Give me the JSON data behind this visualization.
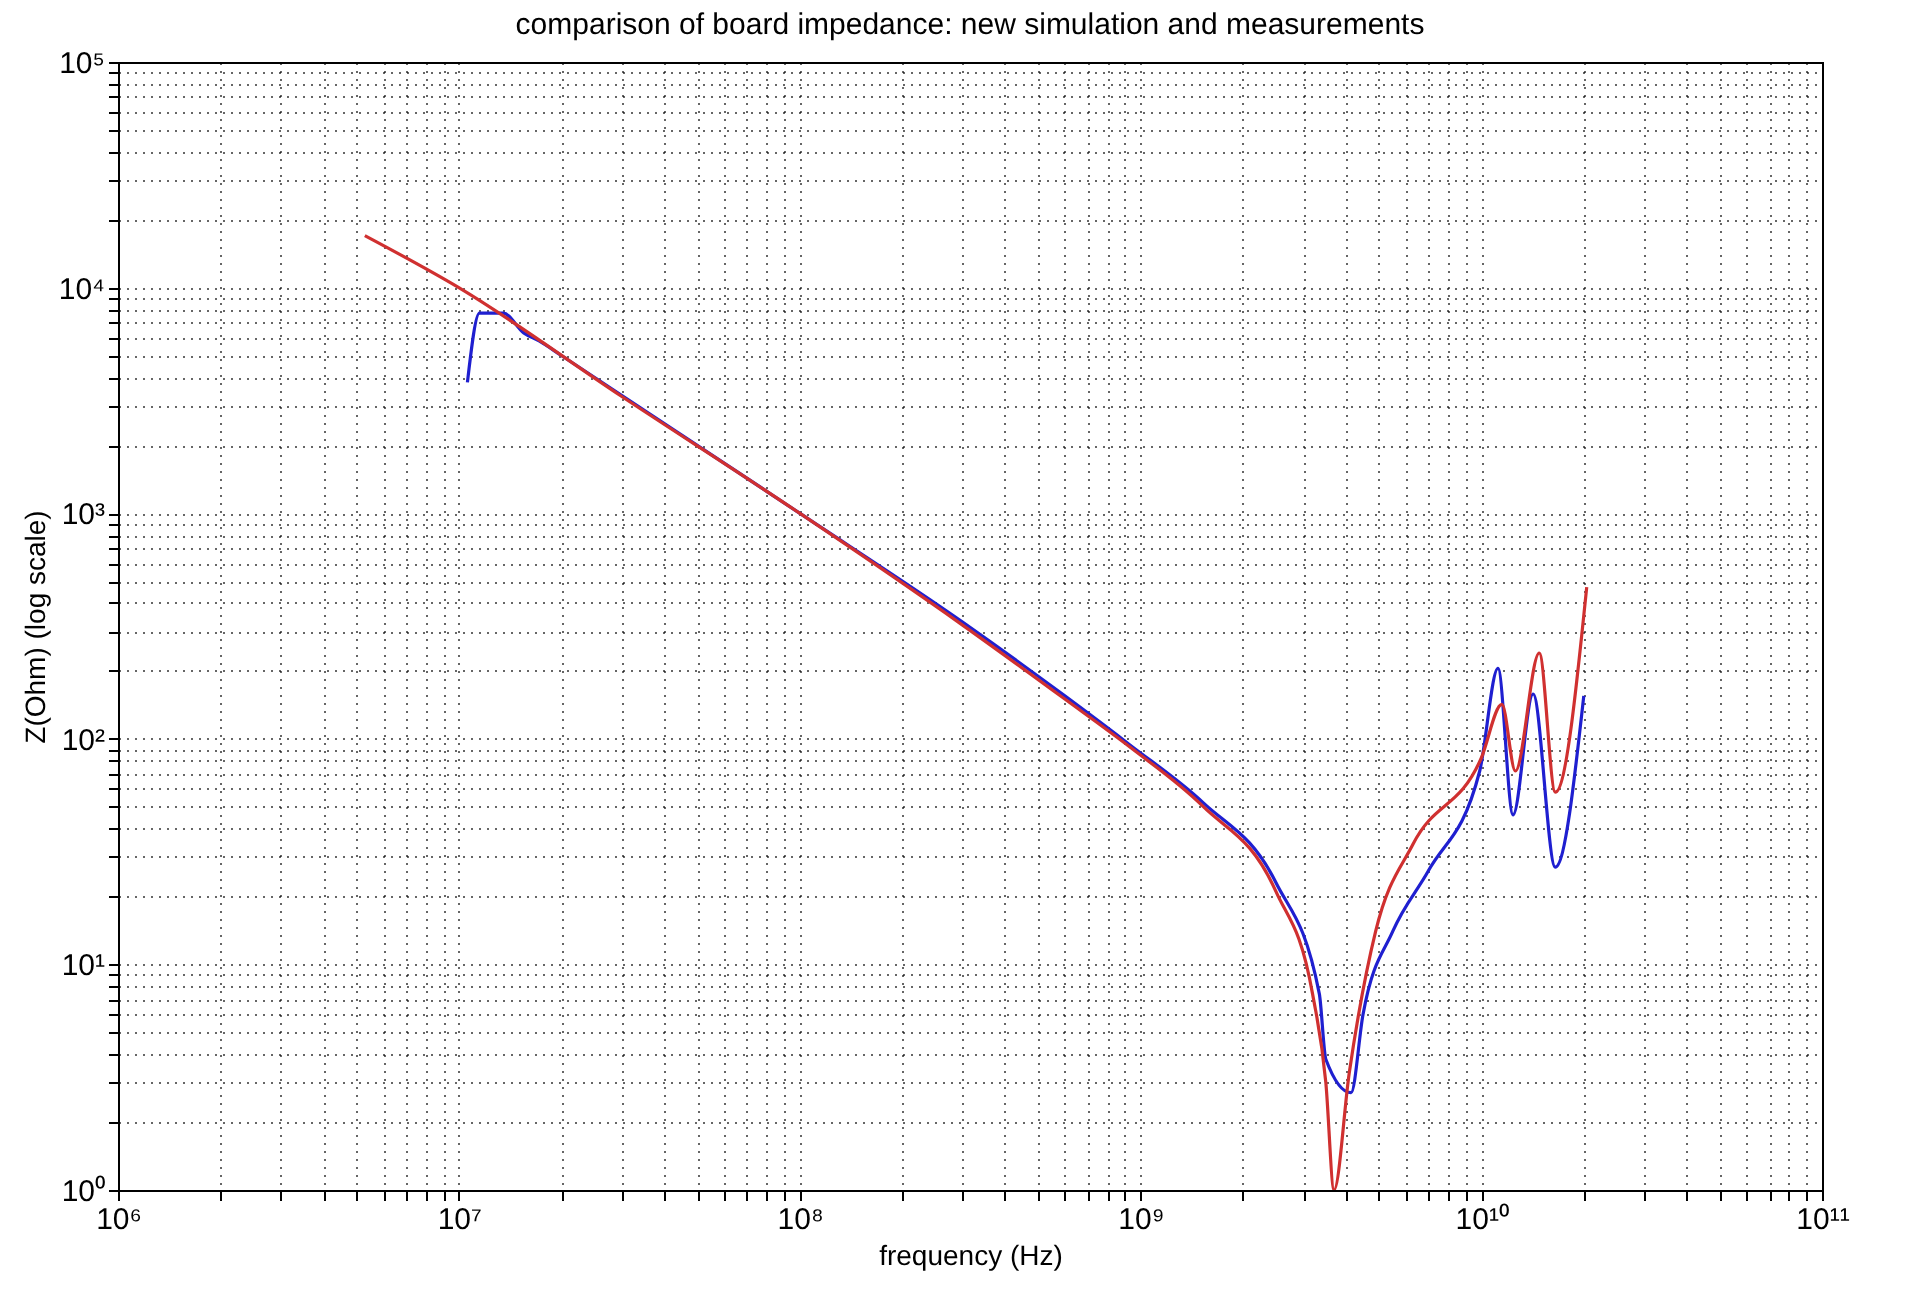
{
  "chart_data": {
    "type": "line",
    "title": "comparison of board impedance: new simulation and measurements",
    "xlabel": "frequency (Hz)",
    "ylabel": "Z(Ohm) (log scale)",
    "log": "xy",
    "grid": true,
    "legend": false,
    "line_style": "solid",
    "marker": "none",
    "xlim": [
      1000000.0,
      100000000000.0
    ],
    "ylim": [
      1,
      100000.0
    ],
    "xticks": [
      {
        "value": 1000000.0,
        "label": "10⁶"
      },
      {
        "value": 2000000.0,
        "label": null
      },
      {
        "value": 3000000.0,
        "label": null
      },
      {
        "value": 4000000.0,
        "label": null
      },
      {
        "value": 5000000.0,
        "label": null
      },
      {
        "value": 6000000.0,
        "label": null
      },
      {
        "value": 7000000.0,
        "label": null
      },
      {
        "value": 8000000.0,
        "label": null
      },
      {
        "value": 9000000.0,
        "label": null
      },
      {
        "value": 10000000.0,
        "label": "10⁷"
      },
      {
        "value": 20000000.0,
        "label": null
      },
      {
        "value": 30000000.0,
        "label": null
      },
      {
        "value": 40000000.0,
        "label": null
      },
      {
        "value": 50000000.0,
        "label": null
      },
      {
        "value": 60000000.0,
        "label": null
      },
      {
        "value": 70000000.0,
        "label": null
      },
      {
        "value": 80000000.0,
        "label": null
      },
      {
        "value": 90000000.0,
        "label": null
      },
      {
        "value": 100000000.0,
        "label": "10⁸"
      },
      {
        "value": 200000000.0,
        "label": null
      },
      {
        "value": 300000000.0,
        "label": null
      },
      {
        "value": 400000000.0,
        "label": null
      },
      {
        "value": 500000000.0,
        "label": null
      },
      {
        "value": 600000000.0,
        "label": null
      },
      {
        "value": 700000000.0,
        "label": null
      },
      {
        "value": 800000000.0,
        "label": null
      },
      {
        "value": 900000000.0,
        "label": null
      },
      {
        "value": 1000000000.0,
        "label": "10⁹"
      },
      {
        "value": 2000000000.0,
        "label": null
      },
      {
        "value": 3000000000.0,
        "label": null
      },
      {
        "value": 4000000000.0,
        "label": null
      },
      {
        "value": 5000000000.0,
        "label": null
      },
      {
        "value": 6000000000.0,
        "label": null
      },
      {
        "value": 7000000000.0,
        "label": null
      },
      {
        "value": 8000000000.0,
        "label": null
      },
      {
        "value": 9000000000.0,
        "label": null
      },
      {
        "value": 10000000000.0,
        "label": "10¹⁰"
      },
      {
        "value": 20000000000.0,
        "label": null
      },
      {
        "value": 30000000000.0,
        "label": null
      },
      {
        "value": 40000000000.0,
        "label": null
      },
      {
        "value": 50000000000.0,
        "label": null
      },
      {
        "value": 60000000000.0,
        "label": null
      },
      {
        "value": 70000000000.0,
        "label": null
      },
      {
        "value": 80000000000.0,
        "label": null
      },
      {
        "value": 90000000000.0,
        "label": null
      },
      {
        "value": 100000000000.0,
        "label": "10¹¹"
      }
    ],
    "yticks": [
      {
        "value": 1,
        "label": "10⁰"
      },
      {
        "value": 2,
        "label": null
      },
      {
        "value": 3,
        "label": null
      },
      {
        "value": 4,
        "label": null
      },
      {
        "value": 5,
        "label": null
      },
      {
        "value": 6,
        "label": null
      },
      {
        "value": 7,
        "label": null
      },
      {
        "value": 8,
        "label": null
      },
      {
        "value": 9,
        "label": null
      },
      {
        "value": 10,
        "label": "10¹"
      },
      {
        "value": 20,
        "label": null
      },
      {
        "value": 30,
        "label": null
      },
      {
        "value": 40,
        "label": null
      },
      {
        "value": 50,
        "label": null
      },
      {
        "value": 60,
        "label": null
      },
      {
        "value": 70,
        "label": null
      },
      {
        "value": 80,
        "label": null
      },
      {
        "value": 90,
        "label": null
      },
      {
        "value": 100,
        "label": "10²"
      },
      {
        "value": 200,
        "label": null
      },
      {
        "value": 300,
        "label": null
      },
      {
        "value": 400,
        "label": null
      },
      {
        "value": 500,
        "label": null
      },
      {
        "value": 600,
        "label": null
      },
      {
        "value": 700,
        "label": null
      },
      {
        "value": 800,
        "label": null
      },
      {
        "value": 900,
        "label": null
      },
      {
        "value": 1000,
        "label": "10³"
      },
      {
        "value": 2000,
        "label": null
      },
      {
        "value": 3000,
        "label": null
      },
      {
        "value": 4000,
        "label": null
      },
      {
        "value": 5000,
        "label": null
      },
      {
        "value": 6000,
        "label": null
      },
      {
        "value": 7000,
        "label": null
      },
      {
        "value": 8000,
        "label": null
      },
      {
        "value": 9000,
        "label": null
      },
      {
        "value": 10000,
        "label": "10⁴"
      },
      {
        "value": 20000,
        "label": null
      },
      {
        "value": 30000,
        "label": null
      },
      {
        "value": 40000,
        "label": null
      },
      {
        "value": 50000,
        "label": null
      },
      {
        "value": 60000,
        "label": null
      },
      {
        "value": 70000,
        "label": null
      },
      {
        "value": 80000,
        "label": null
      },
      {
        "value": 90000,
        "label": null
      },
      {
        "value": 100000,
        "label": "10⁵"
      }
    ],
    "series": [
      {
        "color": "#1f1fd0",
        "x": [
          10600000.0,
          11500000.0,
          13500000.0,
          15500000.0,
          17200000.0,
          20000000.0,
          100000000.0,
          300000000.0,
          600000000.0,
          940000000.0,
          1530000000.0,
          2500000000.0,
          3350000000.0,
          3500000000.0,
          4150000000.0,
          4500000000.0,
          5500000000.0,
          7000000000.0,
          9900000000.0,
          11200000000.0,
          12400000000.0,
          14200000000.0,
          16500000000.0,
          20000000000.0
        ],
        "values": [
          3800,
          7700,
          7700,
          6300,
          5800,
          5000,
          1000,
          330,
          155,
          93,
          52,
          23,
          7.4,
          3.8,
          2.7,
          6,
          14,
          26,
          72,
          205,
          46,
          158,
          27,
          155
        ]
      },
      {
        "color": "#d03030",
        "x": [
          5300000.0,
          10000000.0,
          30000000.0,
          100000000.0,
          300000000.0,
          600000000.0,
          940000000.0,
          1530000000.0,
          2500000000.0,
          3200000000.0,
          3500000000.0,
          3700000000.0,
          4100000000.0,
          4900000000.0,
          6300000000.0,
          10000000000.0,
          11500000000.0,
          12600000000.0,
          14800000000.0,
          16500000000.0,
          20400000000.0
        ],
        "values": [
          17000,
          10000,
          3300,
          1000,
          320,
          150,
          91,
          50,
          21,
          7.4,
          3,
          1,
          3.3,
          14,
          34,
          82,
          142,
          72,
          240,
          58,
          470
        ]
      }
    ]
  }
}
